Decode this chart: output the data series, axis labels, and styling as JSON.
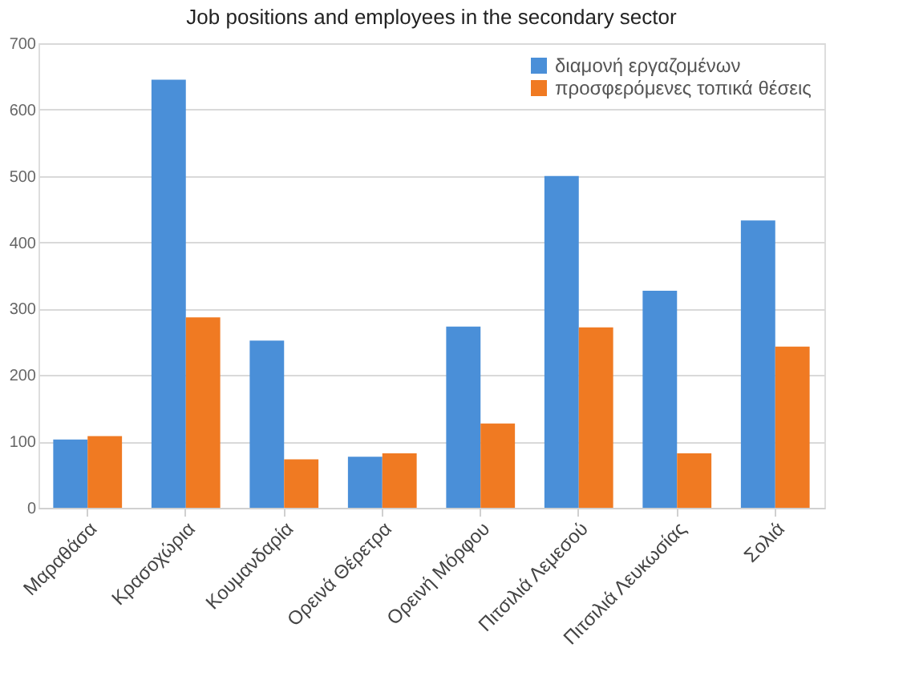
{
  "chart_data": {
    "type": "bar",
    "title": "Job positions and employees in the secondary sector",
    "categories": [
      "Μαραθάσα",
      "Κρασοχώρια",
      "Κουμανδαρία",
      "Ορεινά Θέρετρα",
      "Ορεινή Μόρφου",
      "Πιτσιλιά Λεμεσού",
      "Πιτσιλιά Λευκωσίας",
      "Σολιά"
    ],
    "series": [
      {
        "name": "διαμονή εργαζομένων",
        "color": "#4a8fd8",
        "values": [
          103,
          645,
          252,
          77,
          273,
          500,
          327,
          433
        ]
      },
      {
        "name": "προσφερόμενες τοπικά θέσεις",
        "color": "#f07a22",
        "values": [
          108,
          287,
          73,
          82,
          127,
          272,
          82,
          243
        ]
      }
    ],
    "ylim": [
      0,
      700
    ],
    "yticks": [
      0,
      100,
      200,
      300,
      400,
      500,
      600,
      700
    ],
    "grid": "y",
    "legend": "top right"
  }
}
